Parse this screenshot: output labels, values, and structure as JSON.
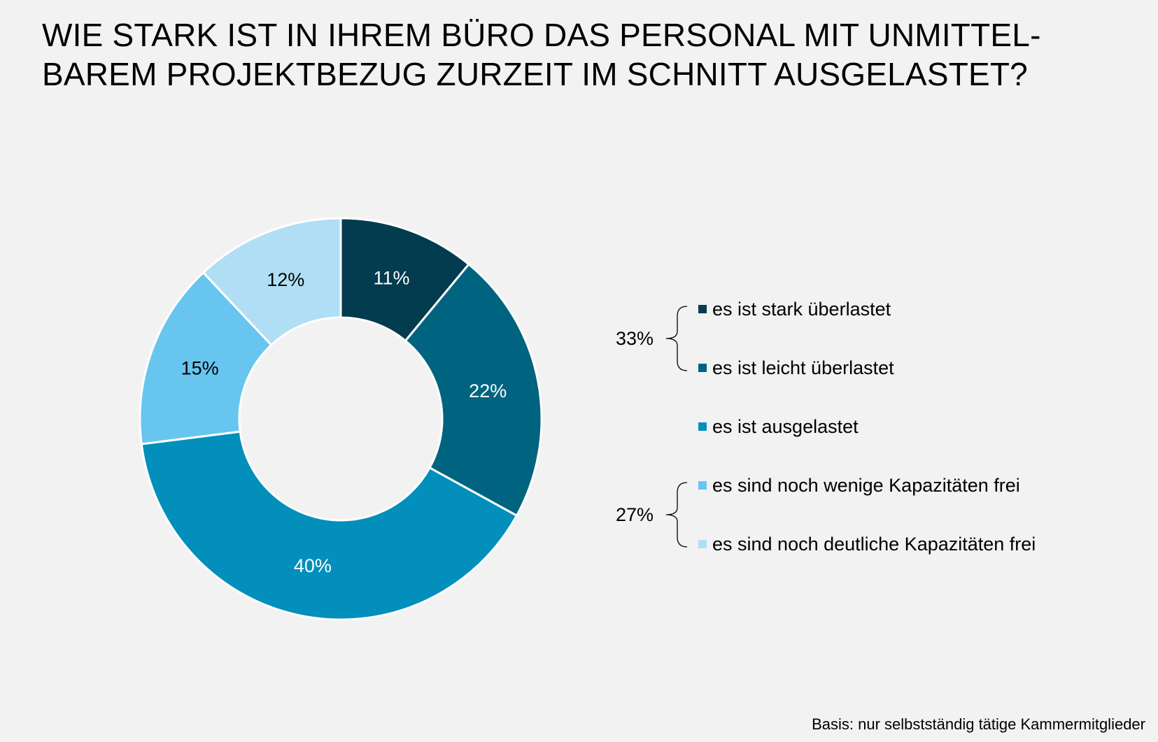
{
  "title_lines": [
    "WIE STARK IST IN IHREM BÜRO DAS PERSONAL MIT UNMITTEL-",
    "BAREM PROJEKTBEZUG ZURZEIT IM SCHNITT AUSGELASTET?"
  ],
  "footnote": "Basis: nur selbstständig tätige Kammermitglieder",
  "chart_data": {
    "type": "pie",
    "variant": "donut",
    "start_angle": "top",
    "direction": "clockwise",
    "slices": [
      {
        "label": "es ist stark überlastet",
        "value": 11,
        "display": "11%",
        "color": "#033b4f",
        "label_color": "#ffffff"
      },
      {
        "label": "es ist leicht überlastet",
        "value": 22,
        "display": "22%",
        "color": "#006481",
        "label_color": "#ffffff"
      },
      {
        "label": "es ist ausgelastet",
        "value": 40,
        "display": "40%",
        "color": "#028fbb",
        "label_color": "#ffffff"
      },
      {
        "label": "es sind noch wenige Kapazitäten frei",
        "value": 15,
        "display": "15%",
        "color": "#68c5ef",
        "label_color": "#000000"
      },
      {
        "label": "es sind noch deutliche Kapazitäten frei",
        "value": 12,
        "display": "12%",
        "color": "#b0dff5",
        "label_color": "#000000"
      }
    ],
    "legend_position": "right",
    "groups": [
      {
        "label": "33%",
        "items": [
          0,
          1
        ]
      },
      {
        "label": "27%",
        "items": [
          3,
          4
        ]
      }
    ]
  }
}
